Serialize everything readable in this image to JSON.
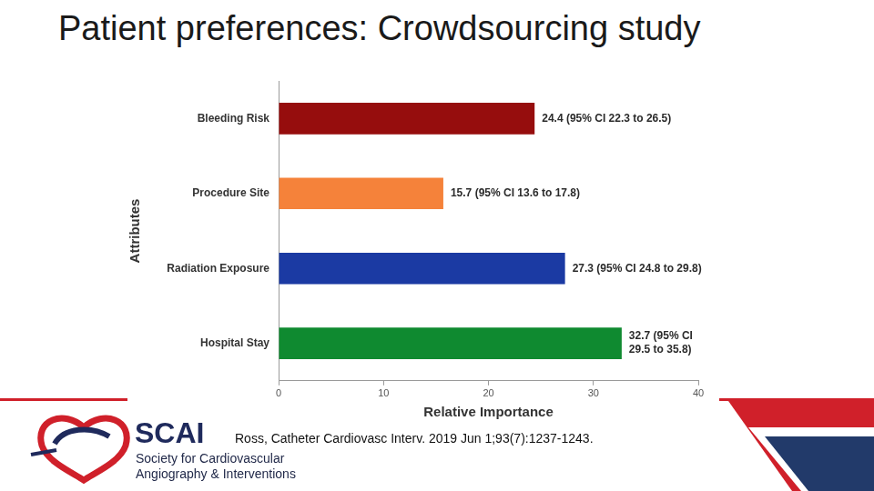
{
  "chart_data": {
    "type": "bar",
    "orientation": "horizontal",
    "title": "Patient preferences: Crowdsourcing study",
    "categories": [
      "Bleeding Risk",
      "Procedure Site",
      "Radiation Exposure",
      "Hospital Stay"
    ],
    "values": [
      24.4,
      15.7,
      27.3,
      32.7
    ],
    "value_labels": [
      "24.4 (95% CI 22.3 to 26.5)",
      "15.7 (95% CI 13.6 to 17.8)",
      "27.3 (95% CI 24.8 to 29.8)",
      "32.7 (95% CI 29.5 to 35.8)"
    ],
    "colors": [
      "#960d0d",
      "#f5823a",
      "#1b3aa3",
      "#0f8a30"
    ],
    "x_label": "Relative Importance",
    "y_label": "Attributes",
    "xlim": [
      0,
      40
    ],
    "xticks": [
      0,
      10,
      20,
      30,
      40
    ],
    "grid": false,
    "data_labels": true
  },
  "footer": {
    "citation": "Ross, Catheter Cardiovasc Interv. 2019 Jun 1;93(7):1237-1243.",
    "logo": {
      "name": "SCAI",
      "lines": [
        "Society for Cardiovascular",
        "Angiography & Interventions"
      ]
    }
  }
}
